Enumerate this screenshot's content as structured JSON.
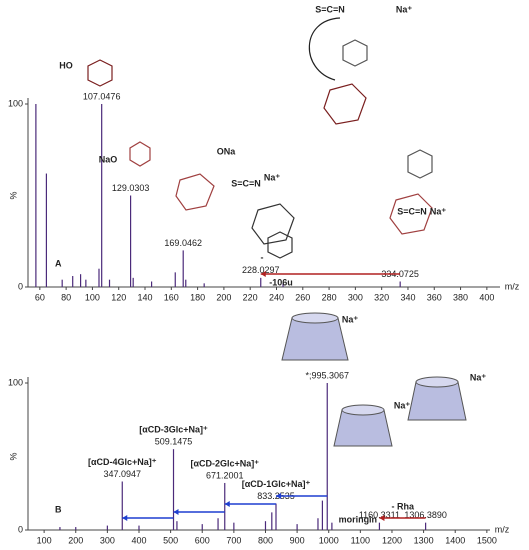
{
  "chart_data": [
    {
      "type": "spectrum",
      "panel": "A",
      "xlabel": "m/z",
      "ylabel": "%",
      "color": "#4b2a7a",
      "xlim": [
        51,
        410
      ],
      "xticks": [
        60,
        80,
        100,
        120,
        140,
        160,
        180,
        200,
        220,
        240,
        260,
        280,
        300,
        320,
        340,
        360,
        380,
        400
      ],
      "ylim": [
        0,
        100
      ],
      "yticks": [
        0,
        100
      ],
      "x": [
        57,
        65,
        77,
        85,
        91,
        95,
        105,
        107.0476,
        113,
        129.0303,
        131,
        145,
        163,
        169.0462,
        171,
        185,
        228.0297,
        245,
        334.0725
      ],
      "values": [
        100,
        62,
        4,
        6,
        7,
        4,
        10,
        100,
        4,
        50,
        5,
        3,
        8,
        20,
        4,
        2,
        5,
        2,
        3
      ],
      "x_labels": [
        null,
        null,
        null,
        null,
        null,
        null,
        null,
        "107.0476",
        null,
        "129.0303",
        null,
        null,
        null,
        "169.0462",
        null,
        null,
        "228.0297",
        null,
        "334.0725"
      ],
      "annotations": [
        "HO",
        "NaO",
        "ONa",
        "S=C=N",
        "Na⁺",
        "S=C=N",
        "Na⁺",
        "S=C=N",
        "Na⁺",
        "-",
        "-106u"
      ]
    },
    {
      "type": "spectrum",
      "panel": "B",
      "xlabel": "m/z",
      "ylabel": "%",
      "color": "#4b2a7a",
      "xlim": [
        49,
        1510
      ],
      "xticks": [
        100,
        200,
        300,
        400,
        500,
        600,
        700,
        800,
        900,
        1000,
        1100,
        1200,
        1300,
        1400,
        1500
      ],
      "ylim": [
        0,
        100
      ],
      "yticks": [
        0,
        100
      ],
      "x": [
        150,
        200,
        300,
        347.0947,
        400,
        509.1475,
        520,
        600,
        650,
        671.2001,
        700,
        800,
        820,
        833.2535,
        900,
        966,
        980,
        995.3067,
        1010,
        1160.3311,
        1306.389
      ],
      "values": [
        2,
        2,
        3,
        33,
        3,
        55,
        6,
        4,
        8,
        32,
        5,
        6,
        12,
        18,
        4,
        8,
        20,
        100,
        5,
        5,
        5
      ],
      "x_labels": [
        null,
        null,
        null,
        "347.0947",
        null,
        "509.1475",
        null,
        null,
        null,
        "671.2001",
        null,
        null,
        null,
        "833.2535",
        null,
        null,
        null,
        "*;995.3067",
        null,
        "1160.3311",
        "1306.3890"
      ],
      "names": [
        null,
        null,
        null,
        "[αCD-4Glc+Na]⁺",
        null,
        "[αCD-3Glc+Na]⁺",
        null,
        null,
        null,
        "[αCD-2Glc+Na]⁺",
        null,
        null,
        null,
        "[αCD-1Glc+Na]⁺",
        null,
        null,
        null,
        null,
        null,
        null,
        null
      ],
      "annotations": [
        "moringin",
        "- Rha",
        "Na⁺",
        "Na⁺",
        "Na⁺"
      ]
    }
  ]
}
